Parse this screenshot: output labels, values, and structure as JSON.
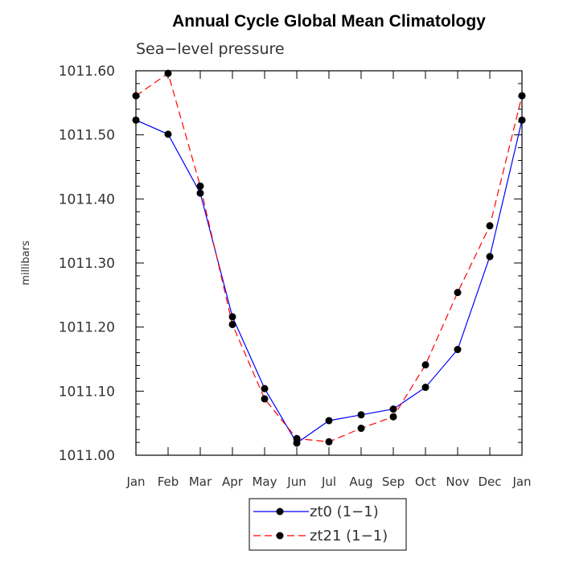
{
  "chart_data": {
    "type": "line",
    "title": "Annual Cycle Global Mean Climatology",
    "subtitle": "Sea−level pressure",
    "xlabel": "",
    "ylabel": "millibars",
    "categories": [
      "Jan",
      "Feb",
      "Mar",
      "Apr",
      "May",
      "Jun",
      "Jul",
      "Aug",
      "Sep",
      "Oct",
      "Nov",
      "Dec",
      "Jan"
    ],
    "ylim": [
      1011.0,
      1011.6
    ],
    "yticks": [
      "1011.00",
      "1011.10",
      "1011.20",
      "1011.30",
      "1011.40",
      "1011.50",
      "1011.60"
    ],
    "grid": false,
    "legend_position": "bottom-center",
    "series": [
      {
        "name": "zt0 (1−1)",
        "color": "#0000ff",
        "dash": "solid",
        "values": [
          1011.523,
          1011.501,
          1011.409,
          1011.216,
          1011.104,
          1011.019,
          1011.054,
          1011.063,
          1011.072,
          1011.106,
          1011.165,
          1011.31,
          1011.523
        ]
      },
      {
        "name": "zt21 (1−1)",
        "color": "#ff0000",
        "dash": "dashed",
        "values": [
          1011.561,
          1011.596,
          1011.42,
          1011.204,
          1011.088,
          1011.026,
          1011.021,
          1011.042,
          1011.06,
          1011.141,
          1011.254,
          1011.358,
          1011.561
        ]
      }
    ]
  }
}
